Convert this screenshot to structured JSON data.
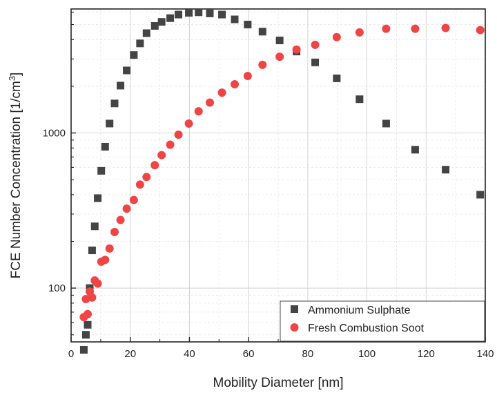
{
  "chart_data": {
    "type": "scatter",
    "title": "",
    "xlabel": "Mobility Diameter [nm]",
    "ylabel": "FCE Number Concentration [1/cm",
    "ylabel_superscript": "3",
    "ylabel_suffix": "]",
    "xlim": [
      0,
      140
    ],
    "ylim": [
      45,
      6300
    ],
    "yscale": "log",
    "x_ticks": [
      "0",
      "20",
      "40",
      "60",
      "80",
      "100",
      "120",
      "140"
    ],
    "y_ticks": [
      "100",
      "1000"
    ],
    "grid": true,
    "legend_position": "bottom-right",
    "series": [
      {
        "name": "Ammonium Sulphate",
        "marker": "square",
        "color": "#444444",
        "x": [
          4.3,
          5.0,
          5.6,
          6.3,
          7.1,
          8.0,
          9.0,
          10.2,
          11.5,
          13.0,
          14.7,
          16.7,
          18.8,
          21.2,
          23.3,
          25.5,
          28.3,
          30.6,
          33.5,
          36.3,
          39.8,
          43.1,
          46.9,
          51.0,
          55.3,
          59.7,
          64.7,
          70.5,
          76.2,
          82.5,
          89.8,
          97.5,
          106.5,
          116.3,
          126.6,
          138.3
        ],
        "y": [
          40,
          50,
          58,
          100,
          175,
          250,
          380,
          570,
          815,
          1150,
          1550,
          2020,
          2530,
          3180,
          3780,
          4400,
          4900,
          5200,
          5500,
          5800,
          5950,
          6000,
          5900,
          5800,
          5400,
          5000,
          4500,
          3950,
          3350,
          2850,
          2250,
          1650,
          1150,
          780,
          580,
          400
        ]
      },
      {
        "name": "Fresh Combustion Soot",
        "marker": "circle",
        "color": "#ef4545",
        "x": [
          4.3,
          5.0,
          5.6,
          6.3,
          7.1,
          8.0,
          9.0,
          10.2,
          11.5,
          13.0,
          14.7,
          16.7,
          18.8,
          21.2,
          23.3,
          25.5,
          28.3,
          30.6,
          33.5,
          36.3,
          39.8,
          43.1,
          46.9,
          51.0,
          55.3,
          59.7,
          64.7,
          70.5,
          76.2,
          82.5,
          89.8,
          97.5,
          106.5,
          116.3,
          126.6,
          138.3
        ],
        "y": [
          65,
          85,
          68,
          95,
          87,
          112,
          107,
          148,
          152,
          180,
          230,
          275,
          325,
          370,
          465,
          520,
          620,
          720,
          840,
          975,
          1150,
          1380,
          1570,
          1820,
          2060,
          2330,
          2750,
          3100,
          3450,
          3700,
          4150,
          4450,
          4700,
          4700,
          4750,
          4600
        ]
      }
    ]
  }
}
